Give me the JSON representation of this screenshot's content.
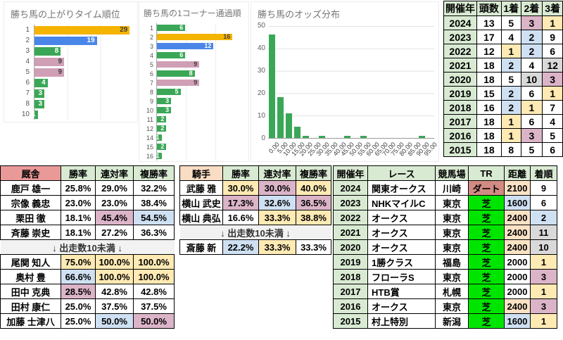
{
  "colors": {
    "bar_orange": "#f4b400",
    "bar_blue": "#4a86e8",
    "bar_green": "#3aa757",
    "bar_pink": "#cf9fb6",
    "bar_text_dark": "#3f3f3f",
    "bar_text_light": "#ffffff",
    "header_green": "#d9ead3",
    "header_salmon": "#ea9999",
    "header_peach": "#f9dcc4",
    "cell_green": "#d9ead3",
    "cell_yellow": "#ffeab4",
    "cell_blue": "#cfe0f2",
    "cell_pink": "#dbb4c8",
    "cell_gray": "#d9d9d9",
    "cell_turf": "#00e500",
    "cell_dirt": "#d28b83",
    "cell_dist_peach": "#fbe2c5",
    "chart_title_gray": "#757575"
  },
  "chart_data": [
    {
      "type": "bar",
      "orientation": "horizontal",
      "title": "勝ち馬の上がりタイム順位",
      "categories": [
        "1",
        "2",
        "3",
        "4",
        "5",
        "6",
        "7",
        "8",
        "10"
      ],
      "values": [
        29,
        19,
        8,
        9,
        9,
        4,
        3,
        3,
        1
      ],
      "bar_colors": [
        "orange",
        "blue",
        "green",
        "pink",
        "pink",
        "green",
        "green",
        "green",
        "green"
      ],
      "xlim": [
        0,
        30
      ],
      "grid": true,
      "legend": "none"
    },
    {
      "type": "bar",
      "orientation": "horizontal",
      "title": "勝ち馬の1コーナー通過順",
      "categories": [
        "1",
        "2",
        "3",
        "4",
        "5",
        "6",
        "7",
        "8",
        "9",
        "10",
        "11",
        "12",
        "14",
        "15",
        "16"
      ],
      "values": [
        6,
        16,
        12,
        6,
        9,
        8,
        9,
        5,
        3,
        3,
        2,
        2,
        1,
        2,
        1
      ],
      "bar_colors": [
        "green",
        "orange",
        "blue",
        "green",
        "pink",
        "green",
        "pink",
        "green",
        "green",
        "green",
        "green",
        "green",
        "green",
        "green",
        "green"
      ],
      "xlim": [
        0,
        18.5
      ],
      "grid": true,
      "legend": "none"
    },
    {
      "type": "bar",
      "orientation": "vertical",
      "title": "勝ち馬のオッズ分布",
      "categories": [
        "0.00",
        "5.00",
        "10.00",
        "15.00",
        "20.00",
        "25.00",
        "30.00",
        "35.00",
        "40.00",
        "45.00",
        "50.00",
        "55.00",
        "60.00",
        "65.00",
        "70.00",
        "75.00",
        "80.00",
        "85.00",
        "90.00",
        "95.00"
      ],
      "values": [
        46,
        18,
        11,
        5,
        1,
        0,
        1,
        0,
        0,
        1,
        0,
        1,
        0,
        0,
        0,
        0,
        0,
        0,
        1,
        0
      ],
      "ylim": [
        0,
        50
      ],
      "y_ticks": [
        0,
        10,
        20,
        30,
        40,
        50
      ],
      "grid": true,
      "legend": "none"
    }
  ],
  "year_table": {
    "headers": [
      {
        "t": "開催年",
        "bg": "header_green"
      },
      {
        "t": "頭数",
        "bg": "header_green"
      },
      {
        "t": "1着",
        "bg": "header_green"
      },
      {
        "t": "2着",
        "bg": "header_green"
      },
      {
        "t": "3着",
        "bg": "header_green"
      }
    ],
    "rows": [
      {
        "cells": [
          {
            "t": "2024",
            "bg": "cell_green"
          },
          {
            "t": "13"
          },
          {
            "t": "5"
          },
          {
            "t": "3",
            "bg": "cell_pink"
          },
          {
            "t": "1",
            "bg": "cell_yellow"
          }
        ]
      },
      {
        "cells": [
          {
            "t": "2023",
            "bg": "cell_green"
          },
          {
            "t": "17"
          },
          {
            "t": "4"
          },
          {
            "t": "2",
            "bg": "cell_blue"
          },
          {
            "t": "9"
          }
        ]
      },
      {
        "cells": [
          {
            "t": "2022",
            "bg": "cell_green"
          },
          {
            "t": "12"
          },
          {
            "t": "1",
            "bg": "cell_yellow"
          },
          {
            "t": "2",
            "bg": "cell_blue"
          },
          {
            "t": "6"
          }
        ]
      },
      {
        "cells": [
          {
            "t": "2021",
            "bg": "cell_green"
          },
          {
            "t": "18"
          },
          {
            "t": "2",
            "bg": "cell_blue"
          },
          {
            "t": "4"
          },
          {
            "t": "12",
            "bg": "cell_gray"
          }
        ]
      },
      {
        "cells": [
          {
            "t": "2020",
            "bg": "cell_green"
          },
          {
            "t": "18"
          },
          {
            "t": "5"
          },
          {
            "t": "10",
            "bg": "cell_gray"
          },
          {
            "t": "3",
            "bg": "cell_pink"
          }
        ]
      },
      {
        "cells": [
          {
            "t": "2019",
            "bg": "cell_green"
          },
          {
            "t": "15"
          },
          {
            "t": "2",
            "bg": "cell_blue"
          },
          {
            "t": "6"
          },
          {
            "t": "1",
            "bg": "cell_yellow"
          }
        ]
      },
      {
        "cells": [
          {
            "t": "2018",
            "bg": "cell_green"
          },
          {
            "t": "16"
          },
          {
            "t": "2",
            "bg": "cell_blue"
          },
          {
            "t": "1",
            "bg": "cell_yellow"
          },
          {
            "t": "7"
          }
        ]
      },
      {
        "cells": [
          {
            "t": "2017",
            "bg": "cell_green"
          },
          {
            "t": "18"
          },
          {
            "t": "1",
            "bg": "cell_yellow"
          },
          {
            "t": "6"
          },
          {
            "t": "4"
          }
        ]
      },
      {
        "cells": [
          {
            "t": "2016",
            "bg": "cell_green"
          },
          {
            "t": "18"
          },
          {
            "t": "1",
            "bg": "cell_yellow"
          },
          {
            "t": "3",
            "bg": "cell_pink"
          },
          {
            "t": "5"
          }
        ]
      },
      {
        "cells": [
          {
            "t": "2015",
            "bg": "cell_green"
          },
          {
            "t": "18"
          },
          {
            "t": "8"
          },
          {
            "t": "5"
          },
          {
            "t": "6"
          }
        ]
      }
    ]
  },
  "stable_table": {
    "headers": [
      {
        "t": "厩舎",
        "bg": "header_salmon"
      },
      {
        "t": "勝率",
        "bg": "header_green"
      },
      {
        "t": "連対率",
        "bg": "header_green"
      },
      {
        "t": "複勝率",
        "bg": "header_green"
      }
    ],
    "rows": [
      {
        "cells": [
          {
            "t": "鹿戸 雄一"
          },
          {
            "t": "25.8%"
          },
          {
            "t": "29.0%"
          },
          {
            "t": "32.2%"
          }
        ]
      },
      {
        "cells": [
          {
            "t": "宗像 義忠"
          },
          {
            "t": "23.0%"
          },
          {
            "t": "23.0%"
          },
          {
            "t": "38.4%"
          }
        ]
      },
      {
        "cells": [
          {
            "t": "栗田 徹"
          },
          {
            "t": "18.1%"
          },
          {
            "t": "45.4%",
            "bg": "cell_pink"
          },
          {
            "t": "54.5%",
            "bg": "cell_blue"
          }
        ]
      },
      {
        "cells": [
          {
            "t": "斉藤 崇史"
          },
          {
            "t": "18.1%"
          },
          {
            "t": "27.2%"
          },
          {
            "t": "36.3%"
          }
        ]
      },
      {
        "sep": true,
        "label": "↓ 出走数10未満 ↓"
      },
      {
        "cells": [
          {
            "t": "尾関 知人"
          },
          {
            "t": "75.0%",
            "bg": "cell_yellow"
          },
          {
            "t": "100.0%",
            "bg": "cell_yellow"
          },
          {
            "t": "100.0%",
            "bg": "cell_yellow"
          }
        ]
      },
      {
        "cells": [
          {
            "t": "奥村 豊"
          },
          {
            "t": "66.6%",
            "bg": "cell_blue"
          },
          {
            "t": "100.0%",
            "bg": "cell_yellow"
          },
          {
            "t": "100.0%",
            "bg": "cell_yellow"
          }
        ]
      },
      {
        "cells": [
          {
            "t": "田中 克典"
          },
          {
            "t": "28.5%",
            "bg": "cell_pink"
          },
          {
            "t": "42.8%"
          },
          {
            "t": "42.8%"
          }
        ]
      },
      {
        "cells": [
          {
            "t": "田村 康仁"
          },
          {
            "t": "25.0%"
          },
          {
            "t": "37.5%"
          },
          {
            "t": "37.5%"
          }
        ]
      },
      {
        "cells": [
          {
            "t": "加藤 士津八"
          },
          {
            "t": "25.0%"
          },
          {
            "t": "50.0%",
            "bg": "cell_blue"
          },
          {
            "t": "50.0%",
            "bg": "cell_pink"
          }
        ]
      }
    ]
  },
  "jockey_table": {
    "headers": [
      {
        "t": "騎手",
        "bg": "header_peach"
      },
      {
        "t": "勝率",
        "bg": "header_green"
      },
      {
        "t": "連対率",
        "bg": "header_green"
      },
      {
        "t": "複勝率",
        "bg": "header_green"
      }
    ],
    "rows": [
      {
        "cells": [
          {
            "t": "武藤 雅"
          },
          {
            "t": "30.0%",
            "bg": "cell_yellow"
          },
          {
            "t": "30.0%",
            "bg": "cell_pink"
          },
          {
            "t": "40.0%",
            "bg": "cell_yellow"
          }
        ]
      },
      {
        "cells": [
          {
            "t": "横山 武史"
          },
          {
            "t": "17.3%",
            "bg": "cell_pink"
          },
          {
            "t": "32.6%",
            "bg": "cell_blue"
          },
          {
            "t": "36.5%",
            "bg": "cell_pink"
          }
        ]
      },
      {
        "cells": [
          {
            "t": "横山 典弘"
          },
          {
            "t": "16.6%"
          },
          {
            "t": "33.3%",
            "bg": "cell_yellow"
          },
          {
            "t": "38.8%",
            "bg": "cell_yellow"
          }
        ]
      },
      {
        "sep": true,
        "label": "↓ 出走数10未満 ↓"
      },
      {
        "cells": [
          {
            "t": "斎藤 新"
          },
          {
            "t": "22.2%",
            "bg": "cell_blue"
          },
          {
            "t": "33.3%",
            "bg": "cell_yellow"
          },
          {
            "t": "33.3%"
          }
        ]
      }
    ]
  },
  "race_table": {
    "headers": [
      {
        "t": "開催年",
        "bg": "header_green"
      },
      {
        "t": "レース",
        "bg": "header_green"
      },
      {
        "t": "競馬場",
        "bg": "header_green"
      },
      {
        "t": "TR",
        "bg": "header_green"
      },
      {
        "t": "距離",
        "bg": "header_green"
      },
      {
        "t": "着順",
        "bg": "header_green"
      }
    ],
    "rows": [
      {
        "cells": [
          {
            "t": "2024",
            "bg": "cell_green"
          },
          {
            "t": "関東オークス"
          },
          {
            "t": "川崎"
          },
          {
            "t": "ダート",
            "bg": "cell_dirt"
          },
          {
            "t": "2100",
            "bg": "cell_dist_peach"
          },
          {
            "t": "9"
          }
        ]
      },
      {
        "cells": [
          {
            "t": "2023",
            "bg": "cell_green"
          },
          {
            "t": "NHKマイルC"
          },
          {
            "t": "東京"
          },
          {
            "t": "芝",
            "bg": "cell_turf"
          },
          {
            "t": "1600",
            "bg": "cell_blue"
          },
          {
            "t": "6"
          }
        ]
      },
      {
        "cells": [
          {
            "t": "2022",
            "bg": "cell_green"
          },
          {
            "t": "オークス"
          },
          {
            "t": "東京"
          },
          {
            "t": "芝",
            "bg": "cell_turf"
          },
          {
            "t": "2400",
            "bg": "cell_dist_peach"
          },
          {
            "t": "2",
            "bg": "cell_blue"
          }
        ]
      },
      {
        "cells": [
          {
            "t": "2021",
            "bg": "cell_green"
          },
          {
            "t": "オークス"
          },
          {
            "t": "東京"
          },
          {
            "t": "芝",
            "bg": "cell_turf"
          },
          {
            "t": "2400",
            "bg": "cell_dist_peach"
          },
          {
            "t": "11",
            "bg": "cell_gray"
          }
        ]
      },
      {
        "cells": [
          {
            "t": "2020",
            "bg": "cell_green"
          },
          {
            "t": "オークス"
          },
          {
            "t": "東京"
          },
          {
            "t": "芝",
            "bg": "cell_turf"
          },
          {
            "t": "2400",
            "bg": "cell_dist_peach"
          },
          {
            "t": "10",
            "bg": "cell_gray"
          }
        ]
      },
      {
        "cells": [
          {
            "t": "2019",
            "bg": "cell_green"
          },
          {
            "t": "1勝クラス"
          },
          {
            "t": "福島"
          },
          {
            "t": "芝",
            "bg": "cell_turf"
          },
          {
            "t": "2000"
          },
          {
            "t": "1",
            "bg": "cell_yellow"
          }
        ]
      },
      {
        "cells": [
          {
            "t": "2018",
            "bg": "cell_green"
          },
          {
            "t": "フローラS"
          },
          {
            "t": "東京"
          },
          {
            "t": "芝",
            "bg": "cell_turf"
          },
          {
            "t": "2000"
          },
          {
            "t": "3",
            "bg": "cell_pink"
          }
        ]
      },
      {
        "cells": [
          {
            "t": "2017",
            "bg": "cell_green"
          },
          {
            "t": "HTB賞"
          },
          {
            "t": "札幌"
          },
          {
            "t": "芝",
            "bg": "cell_turf"
          },
          {
            "t": "2000"
          },
          {
            "t": "1",
            "bg": "cell_yellow"
          }
        ]
      },
      {
        "cells": [
          {
            "t": "2016",
            "bg": "cell_green"
          },
          {
            "t": "オークス"
          },
          {
            "t": "東京"
          },
          {
            "t": "芝",
            "bg": "cell_turf"
          },
          {
            "t": "2400",
            "bg": "cell_dist_peach"
          },
          {
            "t": "3",
            "bg": "cell_pink"
          }
        ]
      },
      {
        "cells": [
          {
            "t": "2015",
            "bg": "cell_green"
          },
          {
            "t": "村上特別"
          },
          {
            "t": "新潟"
          },
          {
            "t": "芝",
            "bg": "cell_turf"
          },
          {
            "t": "1600",
            "bg": "cell_blue"
          },
          {
            "t": "1",
            "bg": "cell_yellow"
          }
        ]
      }
    ]
  }
}
